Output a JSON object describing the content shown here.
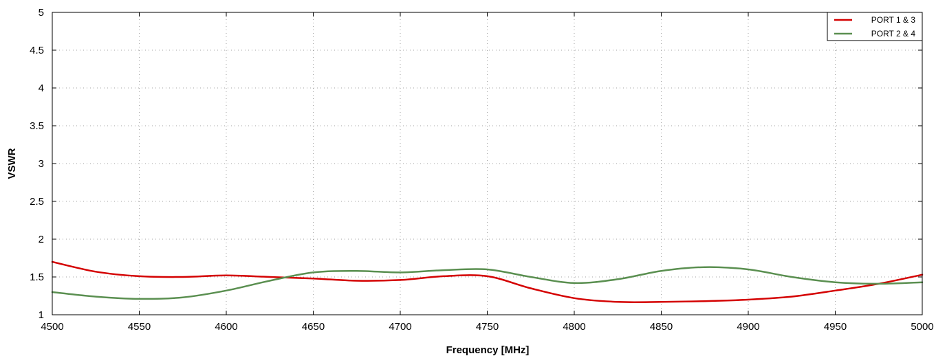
{
  "chart_data": {
    "type": "line",
    "title": "",
    "xlabel": "Frequency [MHz]",
    "ylabel": "VSWR",
    "xlim": [
      4500,
      5000
    ],
    "ylim": [
      1,
      5
    ],
    "xticks": [
      4500,
      4550,
      4600,
      4650,
      4700,
      4750,
      4800,
      4850,
      4900,
      4950,
      5000
    ],
    "yticks": [
      1,
      1.5,
      2,
      2.5,
      3,
      3.5,
      4,
      4.5,
      5
    ],
    "ytick_labels": [
      "1",
      "1.5",
      "2",
      "2.5",
      "3",
      "3.5",
      "4",
      "4.5",
      "5"
    ],
    "grid": true,
    "legend_position": "top-right",
    "x": [
      4500,
      4525,
      4550,
      4575,
      4600,
      4625,
      4650,
      4675,
      4700,
      4725,
      4750,
      4775,
      4800,
      4825,
      4850,
      4875,
      4900,
      4925,
      4950,
      4975,
      5000
    ],
    "series": [
      {
        "name": "PORT 1 & 3",
        "color": "#d40000",
        "values": [
          1.7,
          1.57,
          1.51,
          1.5,
          1.52,
          1.5,
          1.48,
          1.45,
          1.46,
          1.51,
          1.51,
          1.35,
          1.22,
          1.17,
          1.17,
          1.18,
          1.2,
          1.24,
          1.32,
          1.41,
          1.53
        ]
      },
      {
        "name": "PORT 2 & 4",
        "color": "#5a8f50",
        "values": [
          1.3,
          1.24,
          1.21,
          1.23,
          1.32,
          1.45,
          1.56,
          1.58,
          1.56,
          1.59,
          1.6,
          1.5,
          1.42,
          1.47,
          1.58,
          1.63,
          1.6,
          1.5,
          1.43,
          1.41,
          1.43
        ]
      }
    ]
  }
}
